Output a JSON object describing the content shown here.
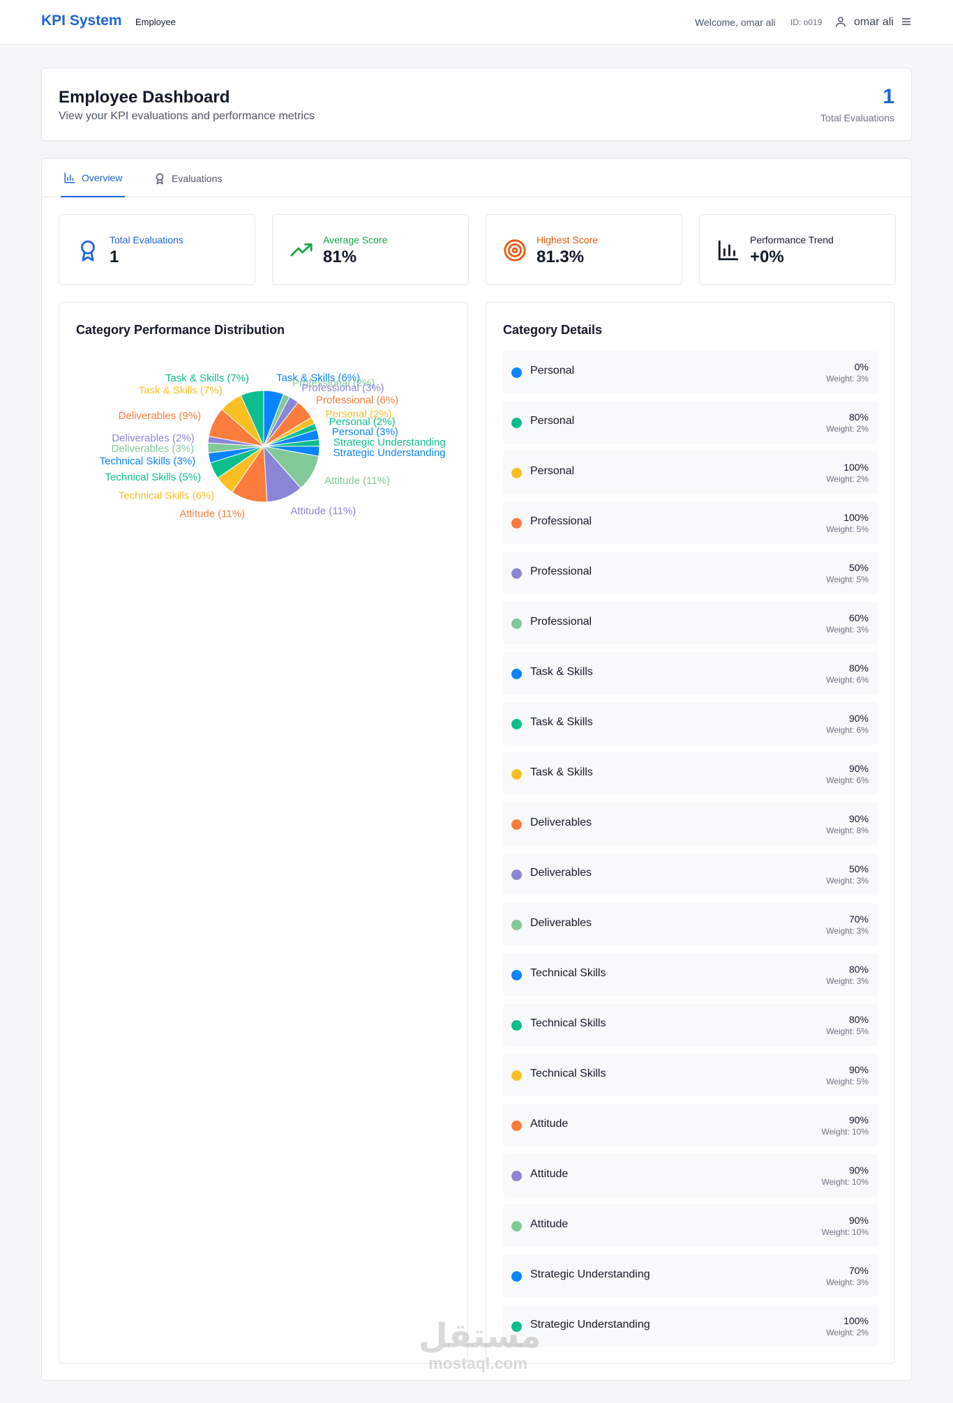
{
  "nav": {
    "brand": "KPI System",
    "role": "Employee",
    "welcome": "Welcome, omar ali",
    "user_id": "ID: o019",
    "user_name": "omar ali"
  },
  "header": {
    "title": "Employee Dashboard",
    "subtitle": "View your KPI evaluations and performance metrics",
    "total_count": "1",
    "total_label": "Total Evaluations"
  },
  "tabs": [
    {
      "label": "Overview",
      "icon": "bar-chart-icon",
      "active": true
    },
    {
      "label": "Evaluations",
      "icon": "award-icon",
      "active": false
    }
  ],
  "stats": [
    {
      "label": "Total Evaluations",
      "value": "1",
      "icon": "award-icon",
      "color": "#1d64d8"
    },
    {
      "label": "Average Score",
      "value": "81%",
      "icon": "trending-up-icon",
      "color": "#16a34a"
    },
    {
      "label": "Highest Score",
      "value": "81.3%",
      "icon": "target-icon",
      "color": "#ea580c"
    },
    {
      "label": "Performance Trend",
      "value": "+0%",
      "icon": "bar-chart-icon",
      "color": "#111827"
    }
  ],
  "chart_title": "Category Performance Distribution",
  "details_title": "Category Details",
  "weight_prefix": "Weight:",
  "colors": [
    "#0a84ff",
    "#0bbf8c",
    "#fbbf24",
    "#fb7c3c",
    "#8b85d8",
    "#82c99a"
  ],
  "chart_data": {
    "type": "pie",
    "title": "Category Performance Distribution",
    "slices": [
      {
        "label": "Task & Skills (6%)",
        "value": 6,
        "color": "#0a84ff"
      },
      {
        "label": "Professional (2%)",
        "value": 2,
        "color": "#82c99a"
      },
      {
        "label": "Professional (3%)",
        "value": 3,
        "color": "#8b85d8"
      },
      {
        "label": "Professional (6%)",
        "value": 6,
        "color": "#fb7c3c"
      },
      {
        "label": "Personal (2%)",
        "value": 2,
        "color": "#fbbf24"
      },
      {
        "label": "Personal (2%)",
        "value": 2,
        "color": "#0bbf8c"
      },
      {
        "label": "Personal (3%)",
        "value": 3,
        "color": "#0a84ff"
      },
      {
        "label": "Strategic Understanding",
        "value": 2,
        "color": "#0bbf8c"
      },
      {
        "label": "Strategic Understanding",
        "value": 3,
        "color": "#0a84ff"
      },
      {
        "label": "Attitude (11%)",
        "value": 11,
        "color": "#82c99a"
      },
      {
        "label": "Attitude (11%)",
        "value": 11,
        "color": "#8b85d8"
      },
      {
        "label": "Attitude (11%)",
        "value": 11,
        "color": "#fb7c3c"
      },
      {
        "label": "Technical Skills (6%)",
        "value": 6,
        "color": "#fbbf24"
      },
      {
        "label": "Technical Skills (5%)",
        "value": 5,
        "color": "#0bbf8c"
      },
      {
        "label": "Technical Skills (3%)",
        "value": 3,
        "color": "#0a84ff"
      },
      {
        "label": "Deliverables (3%)",
        "value": 3,
        "color": "#82c99a"
      },
      {
        "label": "Deliverables (2%)",
        "value": 2,
        "color": "#8b85d8"
      },
      {
        "label": "Deliverables (9%)",
        "value": 9,
        "color": "#fb7c3c"
      },
      {
        "label": "Task & Skills (7%)",
        "value": 7,
        "color": "#fbbf24"
      },
      {
        "label": "Task & Skills (7%)",
        "value": 7,
        "color": "#0bbf8c"
      }
    ]
  },
  "details": [
    {
      "name": "Personal",
      "value": "0%",
      "weight": "3%",
      "color": "#0a84ff"
    },
    {
      "name": "Personal",
      "value": "80%",
      "weight": "2%",
      "color": "#0bbf8c"
    },
    {
      "name": "Personal",
      "value": "100%",
      "weight": "2%",
      "color": "#fbbf24"
    },
    {
      "name": "Professional",
      "value": "100%",
      "weight": "5%",
      "color": "#fb7c3c"
    },
    {
      "name": "Professional",
      "value": "50%",
      "weight": "5%",
      "color": "#8b85d8"
    },
    {
      "name": "Professional",
      "value": "60%",
      "weight": "3%",
      "color": "#82c99a"
    },
    {
      "name": "Task & Skills",
      "value": "80%",
      "weight": "6%",
      "color": "#0a84ff"
    },
    {
      "name": "Task & Skills",
      "value": "90%",
      "weight": "6%",
      "color": "#0bbf8c"
    },
    {
      "name": "Task & Skills",
      "value": "90%",
      "weight": "6%",
      "color": "#fbbf24"
    },
    {
      "name": "Deliverables",
      "value": "90%",
      "weight": "8%",
      "color": "#fb7c3c"
    },
    {
      "name": "Deliverables",
      "value": "50%",
      "weight": "3%",
      "color": "#8b85d8"
    },
    {
      "name": "Deliverables",
      "value": "70%",
      "weight": "3%",
      "color": "#82c99a"
    },
    {
      "name": "Technical Skills",
      "value": "80%",
      "weight": "3%",
      "color": "#0a84ff"
    },
    {
      "name": "Technical Skills",
      "value": "80%",
      "weight": "5%",
      "color": "#0bbf8c"
    },
    {
      "name": "Technical Skills",
      "value": "90%",
      "weight": "5%",
      "color": "#fbbf24"
    },
    {
      "name": "Attitude",
      "value": "90%",
      "weight": "10%",
      "color": "#fb7c3c"
    },
    {
      "name": "Attitude",
      "value": "90%",
      "weight": "10%",
      "color": "#8b85d8"
    },
    {
      "name": "Attitude",
      "value": "90%",
      "weight": "10%",
      "color": "#82c99a"
    },
    {
      "name": "Strategic Understanding",
      "value": "70%",
      "weight": "3%",
      "color": "#0a84ff"
    },
    {
      "name": "Strategic Understanding",
      "value": "100%",
      "weight": "2%",
      "color": "#0bbf8c"
    }
  ],
  "watermark": {
    "arabic": "مستقل",
    "latin": "mostaql.com"
  }
}
